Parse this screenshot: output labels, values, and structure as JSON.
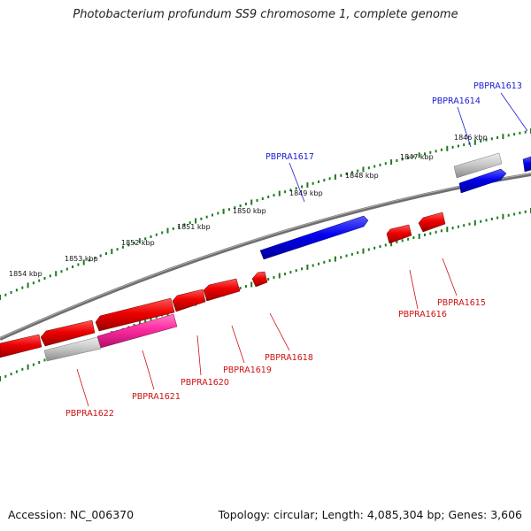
{
  "title": "Photobacterium profundum SS9 chromosome 1, complete genome",
  "footer": {
    "accession": "Accession: NC_006370",
    "summary": "Topology: circular; Length: 4,085,304 bp; Genes: 3,606"
  },
  "kbp_labels": [
    "1846 kbp",
    "1847 kbp",
    "1848 kbp",
    "1849 kbp",
    "1850 kbp",
    "1851 kbp",
    "1852 kbp",
    "1853 kbp",
    "1854 kbp"
  ],
  "gene_labels": {
    "forward": [
      "PBPRA1613",
      "PBPRA1614",
      "PBPRA1617"
    ],
    "reverse": [
      "PBPRA1615",
      "PBPRA1616",
      "PBPRA1618",
      "PBPRA1619",
      "PBPRA1620",
      "PBPRA1621",
      "PBPRA1622"
    ]
  },
  "colors": {
    "backbone": "#808080",
    "tick": "#1f7a1f",
    "forward_gene": "#0000ee",
    "reverse_gene": "#ee0000",
    "rna_gene": "#ff2aa0",
    "pseudo_gene": "#b8b8b8",
    "forward_label": "#1a1ad6",
    "reverse_label": "#cc1111"
  }
}
